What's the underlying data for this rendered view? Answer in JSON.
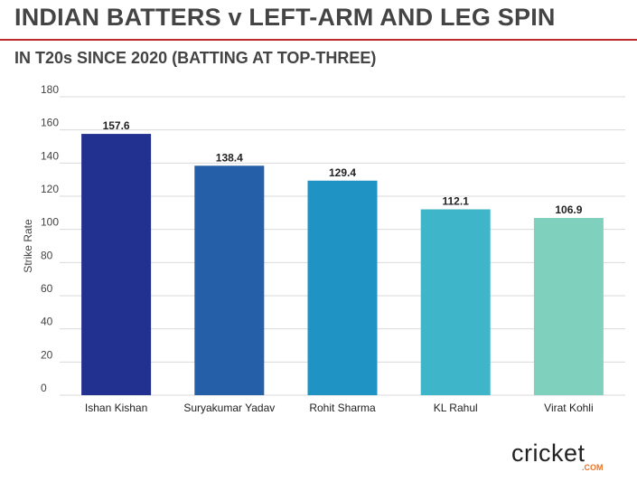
{
  "title": "INDIAN BATTERS v LEFT-ARM AND LEG SPIN",
  "subtitle": "IN T20s SINCE 2020 (BATTING AT TOP-THREE)",
  "colors": {
    "title_rule": "#c0282d",
    "text": "#444444",
    "grid": "#d9d9d9"
  },
  "logo": {
    "text_main": "cricket",
    "text_sub": ".COM"
  },
  "chart_data": {
    "type": "bar",
    "categories": [
      "Ishan Kishan",
      "Suryakumar Yadav",
      "Rohit Sharma",
      "KL Rahul",
      "Virat Kohli"
    ],
    "values": [
      157.6,
      138.4,
      129.4,
      112.1,
      106.9
    ],
    "data_labels": [
      "157.6",
      "138.4",
      "129.4",
      "112.1",
      "106.9"
    ],
    "bar_colors": [
      "#22318f",
      "#245fa7",
      "#1e93c4",
      "#3fb5c9",
      "#7fd0bd"
    ],
    "xlabel": "",
    "ylabel": "Strike Rate",
    "ylim": [
      0,
      180
    ],
    "yticks": [
      0,
      20,
      40,
      60,
      80,
      100,
      120,
      140,
      160,
      180
    ],
    "grid": true,
    "legend": "none"
  }
}
